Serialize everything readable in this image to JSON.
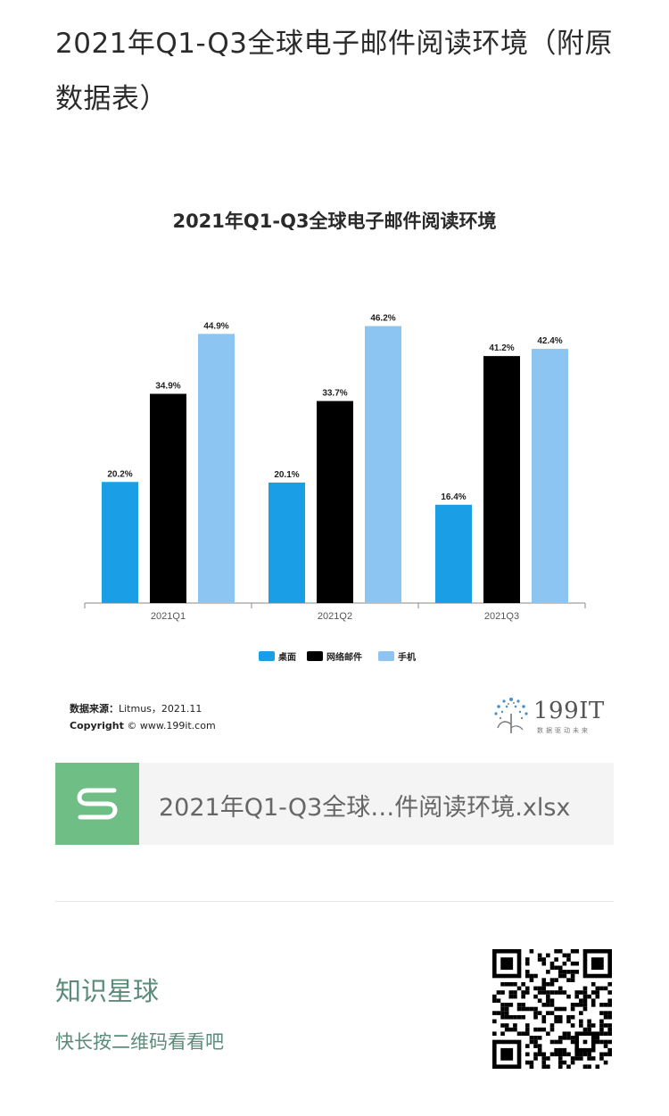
{
  "post": {
    "title": "2021年Q1-Q3全球电子邮件阅读环境（附原数据表）"
  },
  "chart_data": {
    "type": "bar",
    "title": "2021年Q1-Q3全球电子邮件阅读环境",
    "categories": [
      "2021Q1",
      "2021Q2",
      "2021Q3"
    ],
    "series": [
      {
        "name": "桌面",
        "color": "#1a9fe6",
        "values": [
          20.2,
          20.1,
          16.4
        ],
        "labels": [
          "20.2%",
          "20.1%",
          "16.4%"
        ]
      },
      {
        "name": "网络邮件",
        "color": "#000000",
        "values": [
          34.9,
          33.7,
          41.2
        ],
        "labels": [
          "34.9%",
          "33.7%",
          "41.2%"
        ]
      },
      {
        "name": "手机",
        "color": "#8cc4f2",
        "values": [
          44.9,
          46.2,
          42.4
        ],
        "labels": [
          "44.9%",
          "46.2%",
          "42.4%"
        ]
      }
    ],
    "ylim": [
      0,
      50
    ],
    "legend_position": "bottom",
    "grid": false
  },
  "source": {
    "label": "数据来源：",
    "value": "Litmus，2021.11",
    "copyright_label": "Copyright",
    "copyright_value": "© www.199it.com"
  },
  "brand": {
    "number": "199IT",
    "tagline": "数据驱动未来"
  },
  "file": {
    "icon": "spreadsheet-s-icon",
    "name": "2021年Q1-Q3全球…件阅读环境.xlsx"
  },
  "knowledge_planet": {
    "title": "知识星球",
    "subtitle": "快长按二维码看看吧",
    "qr_icon": "qr-code-icon"
  }
}
